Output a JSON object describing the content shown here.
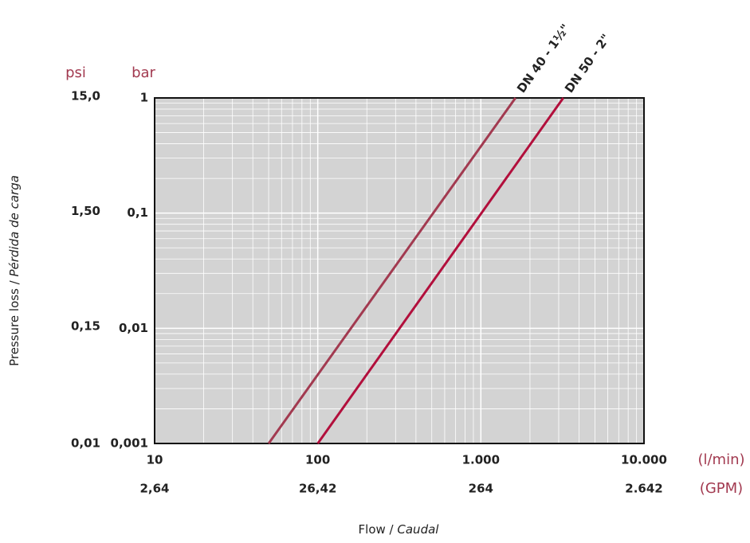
{
  "chart_data": {
    "type": "line",
    "xlabel": "Flow /",
    "xlabel_italic": "Caudal",
    "ylabel": "Pressure loss /",
    "ylabel_italic": "Pérdida de carga",
    "x_unit": "(l/min)",
    "x2_unit": "(GPM)",
    "y_unit": "bar",
    "y2_unit": "psi",
    "xscale": "log",
    "yscale": "log",
    "grid": true,
    "xlim": [
      10,
      10000
    ],
    "xticks": [
      10,
      100,
      {
        "value": 1000,
        "label": "1.000"
      },
      {
        "value": 10000,
        "label": "10.000"
      }
    ],
    "x2lim": [
      2.642,
      2642
    ],
    "x2ticks": [
      {
        "value": 2.642,
        "label": "2,64"
      },
      {
        "value": 26.42,
        "label": "26,42"
      },
      {
        "value": 264.2,
        "label": "264"
      },
      {
        "value": 2642,
        "label": "2.642"
      }
    ],
    "ylim": [
      0.001,
      1
    ],
    "yticks": [
      1,
      {
        "value": 0.1,
        "label": "0,1"
      },
      {
        "value": 0.01,
        "label": "0,01"
      },
      {
        "value": 0.001,
        "label": "0,001"
      }
    ],
    "y2lim": [
      0.0145,
      14.5
    ],
    "y2ticks": [
      {
        "value": 15,
        "label": "15,0"
      },
      {
        "value": 1.5,
        "label": "1,50"
      },
      {
        "value": 0.15,
        "label": "0,15"
      },
      {
        "value": 0.0145,
        "label": "0,01"
      }
    ],
    "series": [
      {
        "name": "DN 40 - 1½\"",
        "color": "#a23a50",
        "x": [
          50,
          1630
        ],
        "values": [
          0.001,
          1
        ]
      },
      {
        "name": "DN 50 - 2\"",
        "color": "#b20f3c",
        "x": [
          100,
          3200
        ],
        "values": [
          0.001,
          1
        ]
      }
    ]
  }
}
